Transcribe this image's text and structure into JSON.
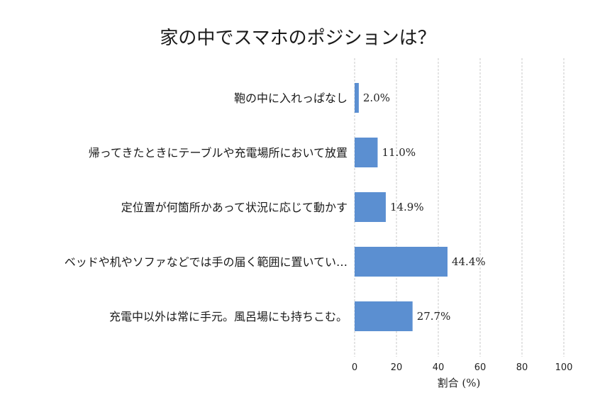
{
  "chart_data": {
    "type": "bar",
    "orientation": "horizontal",
    "title": "家の中でスマホのポジションは？",
    "xlabel": "割合 (%)",
    "ylabel": "",
    "xlim": [
      0,
      100
    ],
    "xticks": [
      0,
      20,
      40,
      60,
      80,
      100
    ],
    "grid": true,
    "bar_color": "#5b8fd1",
    "categories": [
      "鞄の中に入れっぱなし",
      "帰ってきたときにテーブルや充電場所において放置",
      "定位置が何箇所かあって状況に応じて動かす",
      "ベッドや机やソファなどでは手の届く範囲に置いてい…",
      "充電中以外は常に手元。風呂場にも持ちこむ。"
    ],
    "values": [
      2.0,
      11.0,
      14.9,
      44.4,
      27.7
    ],
    "data_labels": [
      "2.0%",
      "11.0%",
      "14.9%",
      "44.4%",
      "27.7%"
    ]
  }
}
